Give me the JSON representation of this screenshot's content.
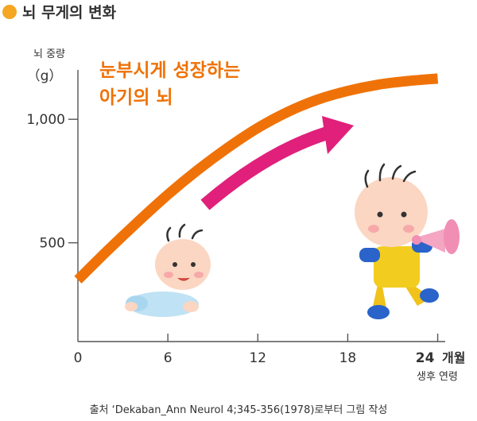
{
  "chart_data": {
    "type": "line",
    "title": "뇌 무게의 변화",
    "ylabel": "뇌 중량",
    "yunit": "（g）",
    "xunit_label": "개월",
    "xlabel": "생후 연령",
    "x_ticks": [
      0,
      6,
      12,
      18,
      24
    ],
    "y_ticks": [
      500,
      1000
    ],
    "y_tick_labels": [
      "500",
      "1,000"
    ],
    "xlim": [
      0,
      24.5
    ],
    "ylim": [
      100,
      1200
    ],
    "series": [
      {
        "x": [
          0,
          2,
          4,
          6,
          8,
          10,
          12,
          14,
          16,
          18,
          20,
          22,
          24
        ],
        "y": [
          350,
          470,
          585,
          695,
          795,
          885,
          965,
          1030,
          1080,
          1115,
          1140,
          1155,
          1165
        ]
      }
    ],
    "annotation": [
      "눈부시게 성장하는",
      "아기의 뇌"
    ],
    "colors": {
      "curve": "#ef7208",
      "annotation": "#ef7208",
      "arrow": "#e0207a",
      "title_dot": "#f5a623",
      "axis": "#555555"
    }
  },
  "source_text": "출처 ‘Dekaban_Ann Neurol 4;345-356(1978)로부터 그림 작성"
}
